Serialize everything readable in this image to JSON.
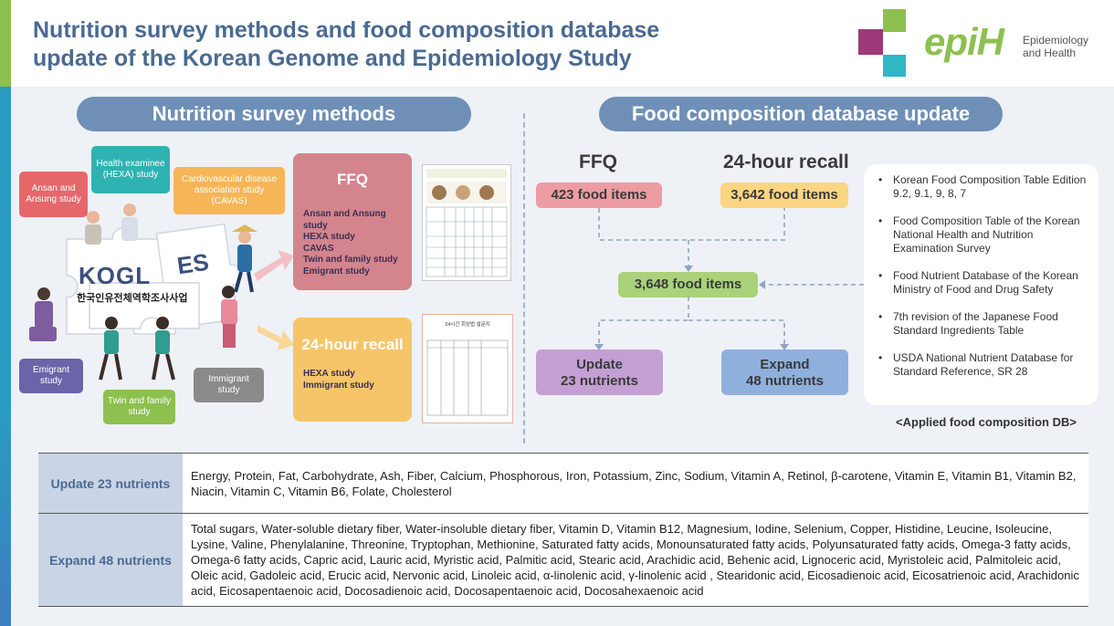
{
  "header": {
    "title_line1": "Nutrition survey methods and food composition database",
    "title_line2": "update of the Korean Genome and Epidemiology Study",
    "logo_text": "epiH",
    "logo_sub": "Epidemiology and Health",
    "brand_green": "#8dc04f",
    "brand_blue": "#4a6a92"
  },
  "survey": {
    "heading": "Nutrition survey methods",
    "tags": {
      "ansan": "Ansan and Ansung study",
      "hexa": "Health examinee (HEXA) study",
      "cavas": "Cardiovascular disease association study (CAVAS)",
      "emigrant": "Emigrant study",
      "twin": "Twin and family study",
      "immigrant": "Immigrant study"
    },
    "puzzle_logo": "KOGL",
    "puzzle_logo2": "ES",
    "puzzle_korean": "한국인유전체역학조사사업",
    "ffq": {
      "title": "FFQ",
      "items": [
        "Ansan and Ansung study",
        "HEXA study",
        "CAVAS",
        "Twin and family study",
        "Emigrant study"
      ]
    },
    "recall": {
      "title": "24-hour recall",
      "items": [
        "HEXA study",
        "Immigrant study"
      ]
    },
    "recall_doc_title": "24시간 회상법 설문지"
  },
  "food": {
    "heading": "Food composition database update",
    "ffq_label": "FFQ",
    "recall_label": "24-hour recall",
    "ffq_items": "423 food items",
    "recall_items": "3,642 food items",
    "merged_items": "3,648 food items",
    "update_label": "Update",
    "update_count": "23 nutrients",
    "expand_label": "Expand",
    "expand_count": "48 nutrients",
    "refs": [
      "Korean Food Composition Table Edition 9.2, 9.1,  9, 8, 7",
      "Food Composition Table of the Korean National Health and Nutrition Examination Survey",
      "Food Nutrient Database of the Korean Ministry of Food and Drug Safety",
      "7th revision of the Japanese Food Standard Ingredients Table",
      "USDA National Nutrient Database for Standard Reference, SR 28"
    ],
    "refs_caption": "<Applied food composition DB>"
  },
  "table": {
    "row1_label": "Update 23 nutrients",
    "row1_text": "Energy, Protein, Fat, Carbohydrate, Ash, Fiber, Calcium, Phosphorous, Iron, Potassium,  Zinc, Sodium, Vitamin A, Retinol, β-carotene, Vitamin E, Vitamin B1, Vitamin B2,  Niacin, Vitamin C, Vitamin B6, Folate, Cholesterol",
    "row2_label": "Expand 48 nutrients",
    "row2_text": "Total sugars, Water-soluble dietary fiber, Water-insoluble dietary fiber, Vitamin D, Vitamin B12, Magnesium, Iodine, Selenium, Copper, Histidine, Leucine, Isoleucine, Lysine, Valine, Phenylalanine, Threonine, Tryptophan, Methionine, Saturated fatty acids, Monounsaturated fatty acids, Polyunsaturated fatty acids, Omega-3 fatty acids, Omega-6 fatty acids, Capric acid, Lauric acid, Myristic acid, Palmitic acid, Stearic acid, Arachidic acid, Behenic acid, Lignoceric acid, Myristoleic acid, Palmitoleic acid, Oleic acid, Gadoleic acid, Erucic acid, Nervonic acid, Linoleic acid, α-linolenic acid, γ-linolenic acid , Stearidonic acid, Eicosadienoic acid, Eicosatrienoic acid, Arachidonic acid, Eicosapentaenoic acid, Docosadienoic acid, Docosapentaenoic acid, Docosahexaenoic acid"
  }
}
